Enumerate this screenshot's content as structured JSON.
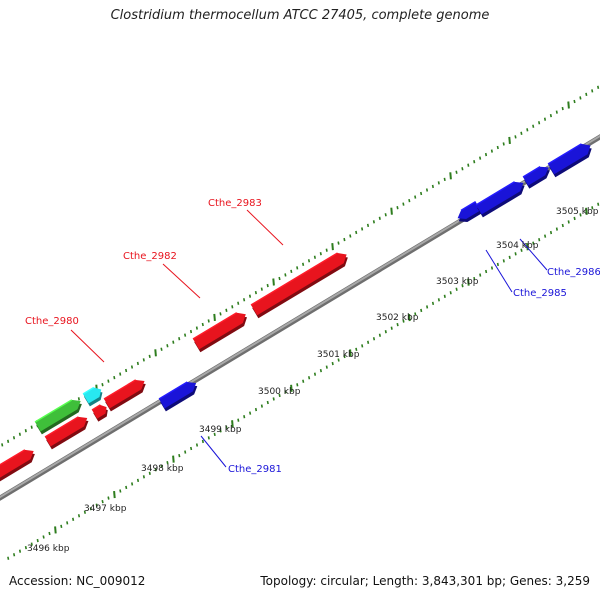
{
  "title": "Clostridium thermocellum ATCC 27405, complete genome",
  "footer": {
    "accession": "Accession: NC_009012",
    "summary": "Topology: circular; Length: 3,843,301 bp; Genes: 3,259"
  },
  "colors": {
    "backbone": "#8a8a8a",
    "ticks": "#2e7d1e",
    "forward_gene": "#e8141e",
    "reverse_gene": "#1a14d8",
    "green_gene": "#3fbf3a",
    "cyan_gene": "#28e8f0",
    "forward_label": "#e8141e",
    "reverse_label": "#1a14d8"
  },
  "kbp_ticks": [
    "3496 kbp",
    "3497 kbp",
    "3498 kbp",
    "3499 kbp",
    "3500 kbp",
    "3501 kbp",
    "3502 kbp",
    "3503 kbp",
    "3504 kbp",
    "3505 kbp"
  ],
  "gene_labels": [
    "Cthe_2980",
    "Cthe_2982",
    "Cthe_2983",
    "Cthe_2981",
    "Cthe_2985",
    "Cthe_2986"
  ]
}
